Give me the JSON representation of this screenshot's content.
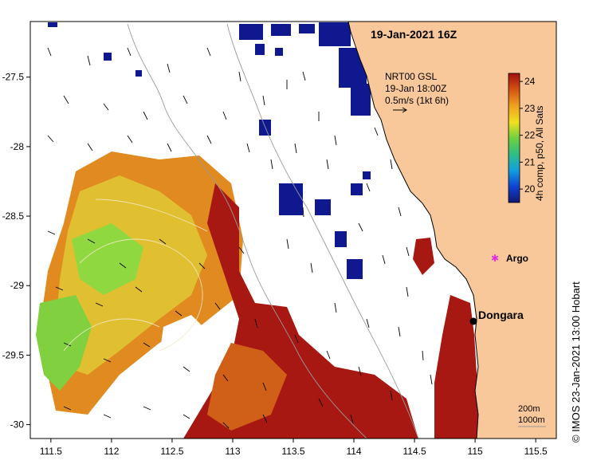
{
  "map": {
    "title": "19-Jan-2021 16Z",
    "current_label": {
      "line1": "NRT00 GSL",
      "line2": "19-Jan 18:00Z",
      "line3": "0.5m/s (1kt 6h)"
    },
    "colorbar": {
      "label": "4h comp, p50, All Sats",
      "ticks": [
        "24",
        "23",
        "22",
        "21",
        "20"
      ],
      "range": [
        19.5,
        24.3
      ]
    },
    "places": [
      {
        "name": "Dongara",
        "lon": 114.93,
        "lat": -29.25
      },
      {
        "name": "Argo",
        "lon": 115.12,
        "lat": -28.86
      }
    ],
    "depth_legend": [
      "200m",
      "1000m"
    ],
    "credit": "© IMOS 23-Jan-2021 13:00 Hobart",
    "x_ticks": [
      "111.5",
      "112",
      "112.5",
      "113",
      "113.5",
      "114",
      "114.5",
      "115",
      "115.5"
    ],
    "y_ticks": [
      "-27.5",
      "-28",
      "-28.5",
      "-29",
      "-29.5",
      "-30"
    ],
    "extent": {
      "lon": [
        111.33,
        115.67
      ],
      "lat": [
        -30.1,
        -27.1
      ]
    },
    "colors": {
      "land": "#f8c89a",
      "sst_hot": "#a01010",
      "sst_warm": "#e07818",
      "sst_mid": "#f0c020",
      "sst_cool": "#70d040",
      "sst_cold": "#101890"
    }
  }
}
